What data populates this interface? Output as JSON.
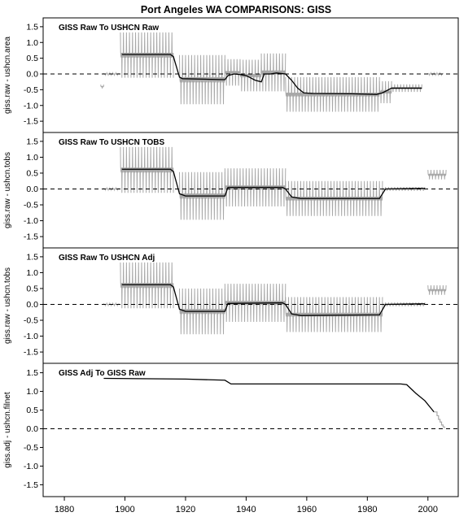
{
  "title": "Port Angeles WA   COMPARISONS: GISS",
  "x_ticks": [
    "1880",
    "1900",
    "1920",
    "1940",
    "1960",
    "1980",
    "2000"
  ],
  "x_tick_values": [
    1880,
    1900,
    1920,
    1940,
    1960,
    1980,
    2000
  ],
  "y_ticks": [
    "1.5",
    "1.0",
    "0.5",
    "0.0",
    "-0.5",
    "-1.0",
    "-1.5"
  ],
  "y_tick_values": [
    1.5,
    1.0,
    0.5,
    0.0,
    -0.5,
    -1.0,
    -1.5
  ],
  "colors": {
    "monthly": "#a8a8a8",
    "annual": "#000000",
    "axis": "#000000"
  },
  "chart_data": [
    {
      "type": "line",
      "title": "GISS Raw To USHCN Raw",
      "ylabel": "giss.raw - ushcn.area",
      "xlim": [
        1873,
        2010
      ],
      "ylim": [
        -1.6,
        1.6
      ],
      "zero_line": "dashed",
      "monthly_segments": [
        {
          "start": 1892,
          "end": 1893,
          "level": -0.4,
          "amp": 0.06
        },
        {
          "start": 1893,
          "end": 1898,
          "level": 0.0,
          "amp": 0.03
        },
        {
          "start": 1898.5,
          "end": 1916,
          "level": 0.6,
          "amp": 0.72
        },
        {
          "start": 1918,
          "end": 1933,
          "level": -0.18,
          "amp": 0.78
        },
        {
          "start": 1933,
          "end": 1938,
          "level": 0.05,
          "amp": 0.42
        },
        {
          "start": 1938,
          "end": 1945,
          "level": -0.05,
          "amp": 0.5
        },
        {
          "start": 1945,
          "end": 1953,
          "level": 0.05,
          "amp": 0.6
        },
        {
          "start": 1953,
          "end": 1984,
          "level": -0.65,
          "amp": 0.55
        },
        {
          "start": 1984,
          "end": 1988,
          "level": -0.58,
          "amp": 0.35
        },
        {
          "start": 1988,
          "end": 1998,
          "level": -0.45,
          "amp": 0.12
        },
        {
          "start": 2000,
          "end": 2005,
          "level": 0.0,
          "amp": 0.03
        }
      ],
      "annual_line": [
        [
          1899,
          0.62
        ],
        [
          1915,
          0.62
        ],
        [
          1916,
          0.55
        ],
        [
          1918,
          -0.1
        ],
        [
          1919,
          -0.15
        ],
        [
          1933,
          -0.18
        ],
        [
          1934,
          -0.05
        ],
        [
          1936,
          0.0
        ],
        [
          1938,
          -0.02
        ],
        [
          1940,
          -0.05
        ],
        [
          1943,
          -0.2
        ],
        [
          1945,
          -0.25
        ],
        [
          1946,
          0.0
        ],
        [
          1948,
          0.0
        ],
        [
          1950,
          0.03
        ],
        [
          1953,
          0.0
        ],
        [
          1955,
          -0.2
        ],
        [
          1957,
          -0.45
        ],
        [
          1959,
          -0.6
        ],
        [
          1962,
          -0.62
        ],
        [
          1975,
          -0.63
        ],
        [
          1983,
          -0.65
        ],
        [
          1985,
          -0.6
        ],
        [
          1988,
          -0.45
        ],
        [
          1998,
          -0.45
        ]
      ]
    },
    {
      "type": "line",
      "title": "GISS Raw To USHCN TOBS",
      "ylabel": "giss.raw - ushcn.tobs",
      "xlim": [
        1873,
        2010
      ],
      "ylim": [
        -1.6,
        1.6
      ],
      "zero_line": "dashed",
      "monthly_segments": [
        {
          "start": 1893,
          "end": 1898,
          "level": 0.0,
          "amp": 0.03
        },
        {
          "start": 1898.5,
          "end": 1916,
          "level": 0.6,
          "amp": 0.72
        },
        {
          "start": 1918,
          "end": 1933,
          "level": -0.22,
          "amp": 0.75
        },
        {
          "start": 1933,
          "end": 1953,
          "level": 0.05,
          "amp": 0.6
        },
        {
          "start": 1953,
          "end": 1985,
          "level": -0.3,
          "amp": 0.55
        },
        {
          "start": 1985,
          "end": 1999,
          "level": 0.0,
          "amp": 0.06
        },
        {
          "start": 2000,
          "end": 2006,
          "level": 0.45,
          "amp": 0.15
        }
      ],
      "annual_line": [
        [
          1899,
          0.62
        ],
        [
          1915,
          0.62
        ],
        [
          1916,
          0.55
        ],
        [
          1918,
          -0.15
        ],
        [
          1920,
          -0.22
        ],
        [
          1933,
          -0.22
        ],
        [
          1934,
          0.05
        ],
        [
          1952,
          0.05
        ],
        [
          1953,
          0.0
        ],
        [
          1955,
          -0.25
        ],
        [
          1958,
          -0.3
        ],
        [
          1984,
          -0.3
        ],
        [
          1986,
          0.0
        ],
        [
          1999,
          0.02
        ]
      ]
    },
    {
      "type": "line",
      "title": "GISS Raw To USHCN Adj",
      "ylabel": "giss.raw - ushcn.tobs",
      "xlim": [
        1873,
        2010
      ],
      "ylim": [
        -1.6,
        1.6
      ],
      "zero_line": "dashed",
      "monthly_segments": [
        {
          "start": 1893,
          "end": 1898,
          "level": 0.0,
          "amp": 0.03
        },
        {
          "start": 1898.5,
          "end": 1916,
          "level": 0.6,
          "amp": 0.72
        },
        {
          "start": 1918,
          "end": 1933,
          "level": -0.22,
          "amp": 0.72
        },
        {
          "start": 1933,
          "end": 1953,
          "level": 0.05,
          "amp": 0.6
        },
        {
          "start": 1953,
          "end": 1985,
          "level": -0.32,
          "amp": 0.55
        },
        {
          "start": 1985,
          "end": 1999,
          "level": 0.0,
          "amp": 0.06
        },
        {
          "start": 2000,
          "end": 2006,
          "level": 0.45,
          "amp": 0.15
        }
      ],
      "annual_line": [
        [
          1899,
          0.62
        ],
        [
          1915,
          0.62
        ],
        [
          1916,
          0.55
        ],
        [
          1918,
          -0.15
        ],
        [
          1920,
          -0.22
        ],
        [
          1933,
          -0.22
        ],
        [
          1934,
          0.03
        ],
        [
          1952,
          0.05
        ],
        [
          1953,
          0.0
        ],
        [
          1955,
          -0.3
        ],
        [
          1958,
          -0.35
        ],
        [
          1984,
          -0.33
        ],
        [
          1986,
          0.0
        ],
        [
          1999,
          0.02
        ]
      ]
    },
    {
      "type": "line",
      "title": "GISS Adj To GISS Raw",
      "ylabel": "giss.adj - ushcn.filnet",
      "xlim": [
        1873,
        2010
      ],
      "ylim": [
        -1.6,
        1.6
      ],
      "zero_line": "dashed",
      "monthly_segments": [
        {
          "start": 1995,
          "end": 2005,
          "level": 0.7,
          "amp": 0.0
        }
      ],
      "annual_line": [
        [
          1893,
          1.35
        ],
        [
          1920,
          1.33
        ],
        [
          1933,
          1.3
        ],
        [
          1935,
          1.2
        ],
        [
          1991,
          1.2
        ],
        [
          1993,
          1.18
        ],
        [
          1996,
          0.95
        ],
        [
          1999,
          0.75
        ],
        [
          2001,
          0.55
        ],
        [
          2002,
          0.45
        ]
      ],
      "step_tail": [
        [
          2002,
          0.45
        ],
        [
          2003,
          0.35
        ],
        [
          2003.5,
          0.25
        ],
        [
          2004,
          0.18
        ],
        [
          2004.5,
          0.1
        ],
        [
          2005,
          0.05
        ],
        [
          2005.5,
          0.02
        ]
      ]
    }
  ]
}
